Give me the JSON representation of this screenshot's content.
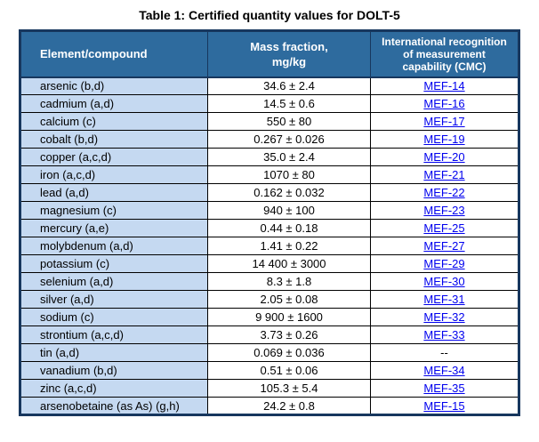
{
  "page": {
    "title": "Table 1: Certified quantity values for DOLT-5"
  },
  "colors": {
    "header_bg": "#2E6B9E",
    "header_text": "#FFFFFF",
    "element_column_bg": "#C5D9F1",
    "link": "#0000EE",
    "outer_border": "#17375E",
    "inner_border": "#000000"
  },
  "table": {
    "headers": [
      "Element/compound",
      "Mass fraction,\nmg/kg",
      "International recognition\nof measurement\ncapability (CMC)"
    ],
    "rows": [
      {
        "element": "arsenic (b,d)",
        "mass_fraction": "34.6 ± 2.4",
        "cmc": "MEF-14",
        "cmc_is_link": true
      },
      {
        "element": "cadmium (a,d)",
        "mass_fraction": "14.5 ± 0.6",
        "cmc": "MEF-16",
        "cmc_is_link": true
      },
      {
        "element": "calcium (c)",
        "mass_fraction": "550 ± 80",
        "cmc": "MEF-17",
        "cmc_is_link": true
      },
      {
        "element": "cobalt (b,d)",
        "mass_fraction": "0.267 ± 0.026",
        "cmc": "MEF-19",
        "cmc_is_link": true
      },
      {
        "element": "copper (a,c,d)",
        "mass_fraction": "35.0 ± 2.4",
        "cmc": "MEF-20",
        "cmc_is_link": true
      },
      {
        "element": "iron (a,c,d)",
        "mass_fraction": "1070 ± 80",
        "cmc": "MEF-21",
        "cmc_is_link": true
      },
      {
        "element": "lead (a,d)",
        "mass_fraction": "0.162 ± 0.032",
        "cmc": "MEF-22",
        "cmc_is_link": true
      },
      {
        "element": "magnesium (c)",
        "mass_fraction": "940 ± 100",
        "cmc": "MEF-23",
        "cmc_is_link": true
      },
      {
        "element": "mercury (a,e)",
        "mass_fraction": "0.44 ± 0.18",
        "cmc": "MEF-25",
        "cmc_is_link": true
      },
      {
        "element": "molybdenum (a,d)",
        "mass_fraction": "1.41 ± 0.22",
        "cmc": "MEF-27",
        "cmc_is_link": true
      },
      {
        "element": "potassium (c)",
        "mass_fraction": "14 400 ± 3000",
        "cmc": "MEF-29",
        "cmc_is_link": true
      },
      {
        "element": "selenium (a,d)",
        "mass_fraction": "8.3 ± 1.8",
        "cmc": "MEF-30",
        "cmc_is_link": true
      },
      {
        "element": "silver (a,d)",
        "mass_fraction": "2.05 ± 0.08",
        "cmc": "MEF-31",
        "cmc_is_link": true
      },
      {
        "element": "sodium (c)",
        "mass_fraction": "9 900 ± 1600",
        "cmc": "MEF-32",
        "cmc_is_link": true
      },
      {
        "element": "strontium (a,c,d)",
        "mass_fraction": "3.73 ± 0.26",
        "cmc": "MEF-33",
        "cmc_is_link": true
      },
      {
        "element": "tin (a,d)",
        "mass_fraction": "0.069 ± 0.036",
        "cmc": "--",
        "cmc_is_link": false
      },
      {
        "element": "vanadium (b,d)",
        "mass_fraction": "0.51 ± 0.06",
        "cmc": "MEF-34",
        "cmc_is_link": true
      },
      {
        "element": "zinc (a,c,d)",
        "mass_fraction": "105.3 ± 5.4",
        "cmc": "MEF-35",
        "cmc_is_link": true
      },
      {
        "element": "arsenobetaine (as As) (g,h)",
        "mass_fraction": "24.2 ± 0.8",
        "cmc": "MEF-15",
        "cmc_is_link": true
      }
    ]
  }
}
